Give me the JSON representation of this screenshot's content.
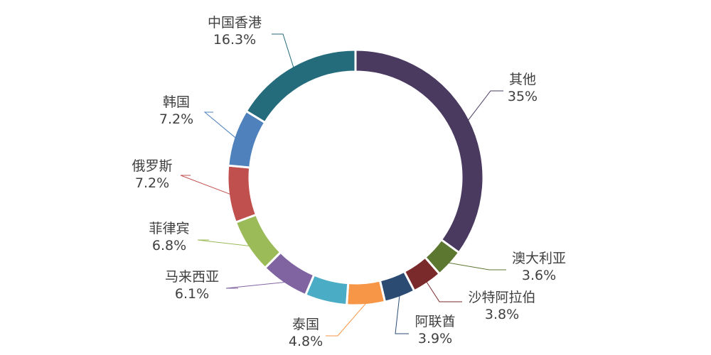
{
  "chart_data": {
    "type": "pie",
    "variant": "donut",
    "title": "",
    "start_angle_deg": 0,
    "direction": "clockwise",
    "slices": [
      {
        "name": "其他",
        "value": 35,
        "label": "35%",
        "color": "#4a3a5f"
      },
      {
        "name": "澳大利亚",
        "value": 3.6,
        "label": "3.6%",
        "color": "#5c7730"
      },
      {
        "name": "沙特阿拉伯",
        "value": 3.8,
        "label": "3.8%",
        "color": "#7b2a2c"
      },
      {
        "name": "阿联酋",
        "value": 3.9,
        "label": "3.9%",
        "color": "#2b4b73"
      },
      {
        "name": "泰国",
        "value": 4.8,
        "label": "4.8%",
        "color": "#f79646"
      },
      {
        "name": "",
        "value": 5.3,
        "label": "",
        "color": "#4bacc6"
      },
      {
        "name": "马来西亚",
        "value": 6.1,
        "label": "6.1%",
        "color": "#8064a2"
      },
      {
        "name": "菲律宾",
        "value": 6.8,
        "label": "6.8%",
        "color": "#9bbb59"
      },
      {
        "name": "俄罗斯",
        "value": 7.2,
        "label": "7.2%",
        "color": "#c0504d"
      },
      {
        "name": "韩国",
        "value": 7.2,
        "label": "7.2%",
        "color": "#4f81bd"
      },
      {
        "name": "中国香港",
        "value": 16.3,
        "label": "16.3%",
        "color": "#246b7b"
      }
    ]
  }
}
